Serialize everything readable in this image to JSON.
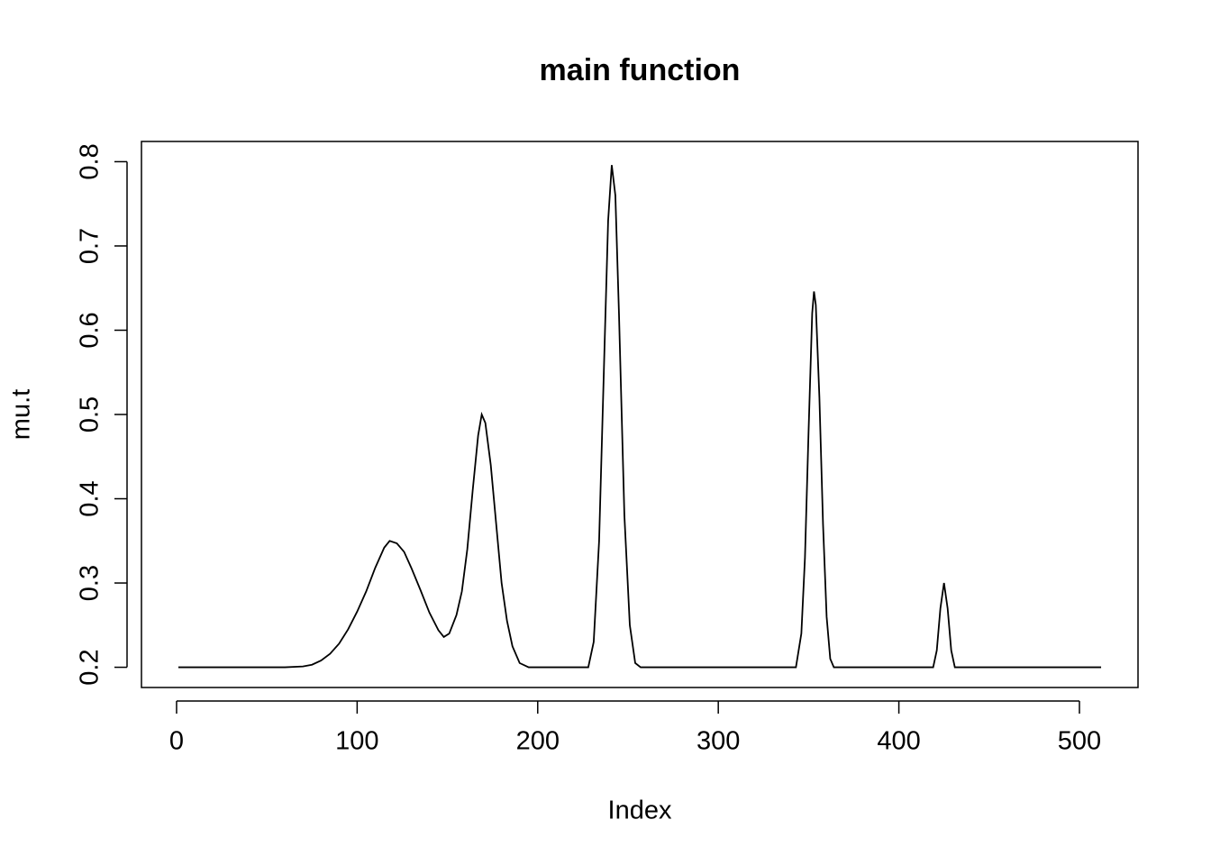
{
  "chart_data": {
    "type": "line",
    "title": "main function",
    "x_label": "Index",
    "y_label": "mu.t",
    "x": [
      1,
      60,
      70,
      75,
      80,
      85,
      90,
      95,
      100,
      105,
      110,
      115,
      118,
      122,
      126,
      130,
      135,
      140,
      145,
      148,
      151,
      155,
      158,
      161,
      164,
      167,
      169,
      171,
      174,
      177,
      180,
      183,
      186,
      190,
      195,
      228,
      231,
      234,
      237,
      239,
      241,
      243,
      245,
      248,
      251,
      254,
      257,
      343,
      346,
      348,
      350,
      352,
      353,
      354,
      356,
      358,
      360,
      362,
      364,
      419,
      421,
      423,
      425,
      427,
      429,
      431,
      512
    ],
    "series": [
      {
        "color": "#000000",
        "values": [
          0.2,
          0.2,
          0.201,
          0.203,
          0.208,
          0.216,
          0.228,
          0.245,
          0.266,
          0.29,
          0.318,
          0.342,
          0.35,
          0.347,
          0.337,
          0.318,
          0.292,
          0.265,
          0.244,
          0.236,
          0.24,
          0.262,
          0.29,
          0.34,
          0.41,
          0.475,
          0.5,
          0.49,
          0.44,
          0.37,
          0.3,
          0.255,
          0.225,
          0.205,
          0.2,
          0.2,
          0.23,
          0.35,
          0.58,
          0.73,
          0.796,
          0.76,
          0.62,
          0.38,
          0.25,
          0.205,
          0.2,
          0.2,
          0.24,
          0.33,
          0.48,
          0.62,
          0.646,
          0.63,
          0.52,
          0.37,
          0.26,
          0.21,
          0.2,
          0.2,
          0.22,
          0.27,
          0.3,
          0.27,
          0.22,
          0.2,
          0.2
        ]
      }
    ],
    "xlim": [
      -19.44,
      532.44
    ],
    "ylim": [
      0.176,
      0.824
    ],
    "xticks": [
      0,
      100,
      200,
      300,
      400,
      500
    ],
    "yticks": [
      0.2,
      0.3,
      0.4,
      0.5,
      0.6,
      0.7,
      0.8
    ]
  }
}
